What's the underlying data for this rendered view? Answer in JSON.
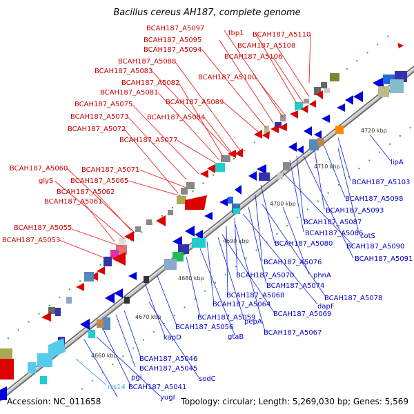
{
  "title": "Bacillus cereus AH187, complete genome",
  "footer": {
    "accession": "Accession: NC_011658",
    "topology": "Topology: circular; Length: 5,269,030 bp; Genes: 5,569"
  },
  "colors": {
    "forward": "#dd0000",
    "reverse": "#0000dd",
    "rna": "#33aadd",
    "backbone": "#909090"
  },
  "ticks": [
    "4660 kbp",
    "4670 kbp",
    "4680 kbp",
    "4690 kbp",
    "4700 kbp",
    "4710 kbp",
    "4720 kbp"
  ],
  "labels_top": [
    "BCAH187_A5097",
    "fbp1",
    "BCAH187_A5110",
    "BCAH187_A5095",
    "BCAH187_A5108",
    "BCAH187_A5094",
    "BCAH187_A5106",
    "BCAH187_A5088",
    "BCAH187_A5083",
    "BCAH187_A5100",
    "BCAH187_A5082",
    "BCAH187_A5081",
    "BCAH187_A5075",
    "BCAH187_A5089",
    "BCAH187_A5073",
    "BCAH187_A5084",
    "BCAH187_A5072",
    "BCAH187_A5077",
    "BCAH187_A5060",
    "BCAH187_A5071",
    "glyS",
    "BCAH187_A5065",
    "BCAH187_A5062",
    "BCAH187_A5061",
    "BCAH187_A5055",
    "BCAH187_A5053"
  ],
  "labels_bottom": [
    "lipA",
    "BCAH187_A5103",
    "BCAH187_A5098",
    "BCAH187_A5093",
    "BCAH187_A5087",
    "BCAH187_A5086",
    "cotS",
    "BCAH187_A5080",
    "BCAH187_A5090",
    "BCAH187_A5091",
    "BCAH187_A5076",
    "phnA",
    "BCAH187_A5070",
    "BCAH187_A5074",
    "BCAH187_A5068",
    "BCAH187_A5078",
    "dapF",
    "BCAH187_A5064",
    "BCAH187_A5069",
    "BCAH187_A5059",
    "pepA",
    "BCAH187_A5067",
    "BCAH187_A5056",
    "gtaB",
    "kapD",
    "BCAH187_A5046",
    "BCAH187_A5045",
    "sodC",
    "rrs14",
    "pgi",
    "BCAH187_A5041",
    "yugI"
  ]
}
